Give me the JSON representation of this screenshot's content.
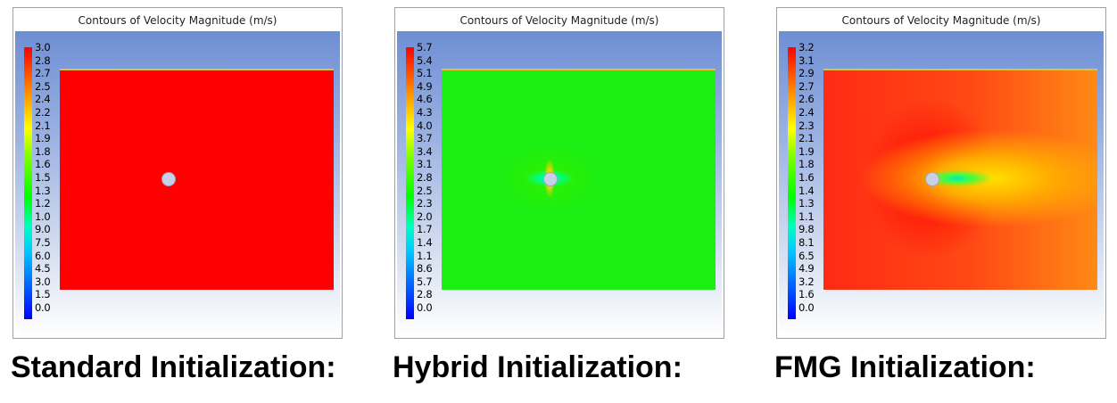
{
  "panels": [
    {
      "title": "Contours of Velocity Magnitude (m/s)",
      "caption": "Standard Initialization:",
      "legend": [
        "3.0",
        "2.8",
        "2.7",
        "2.5",
        "2.4",
        "2.2",
        "2.1",
        "1.9",
        "1.8",
        "1.6",
        "1.5",
        "1.3",
        "1.2",
        "1.0",
        "9.0",
        "7.5",
        "6.0",
        "4.5",
        "3.0",
        "1.5",
        "0.0"
      ]
    },
    {
      "title": "Contours of Velocity Magnitude (m/s)",
      "caption": "Hybrid Initialization:",
      "legend": [
        "5.7",
        "5.4",
        "5.1",
        "4.9",
        "4.6",
        "4.3",
        "4.0",
        "3.7",
        "3.4",
        "3.1",
        "2.8",
        "2.5",
        "2.3",
        "2.0",
        "1.7",
        "1.4",
        "1.1",
        "8.6",
        "5.7",
        "2.8",
        "0.0"
      ]
    },
    {
      "title": "Contours of Velocity Magnitude (m/s)",
      "caption": "FMG Initialization:",
      "legend": [
        "3.2",
        "3.1",
        "2.9",
        "2.7",
        "2.6",
        "2.4",
        "2.3",
        "2.1",
        "1.9",
        "1.8",
        "1.6",
        "1.4",
        "1.3",
        "1.1",
        "9.8",
        "8.1",
        "6.5",
        "4.9",
        "3.2",
        "1.6",
        "0.0"
      ]
    }
  ],
  "colors": {
    "standard_field": "#ff0000",
    "hybrid_field": "#1aee12",
    "fmg_field": "#ff3a14"
  }
}
